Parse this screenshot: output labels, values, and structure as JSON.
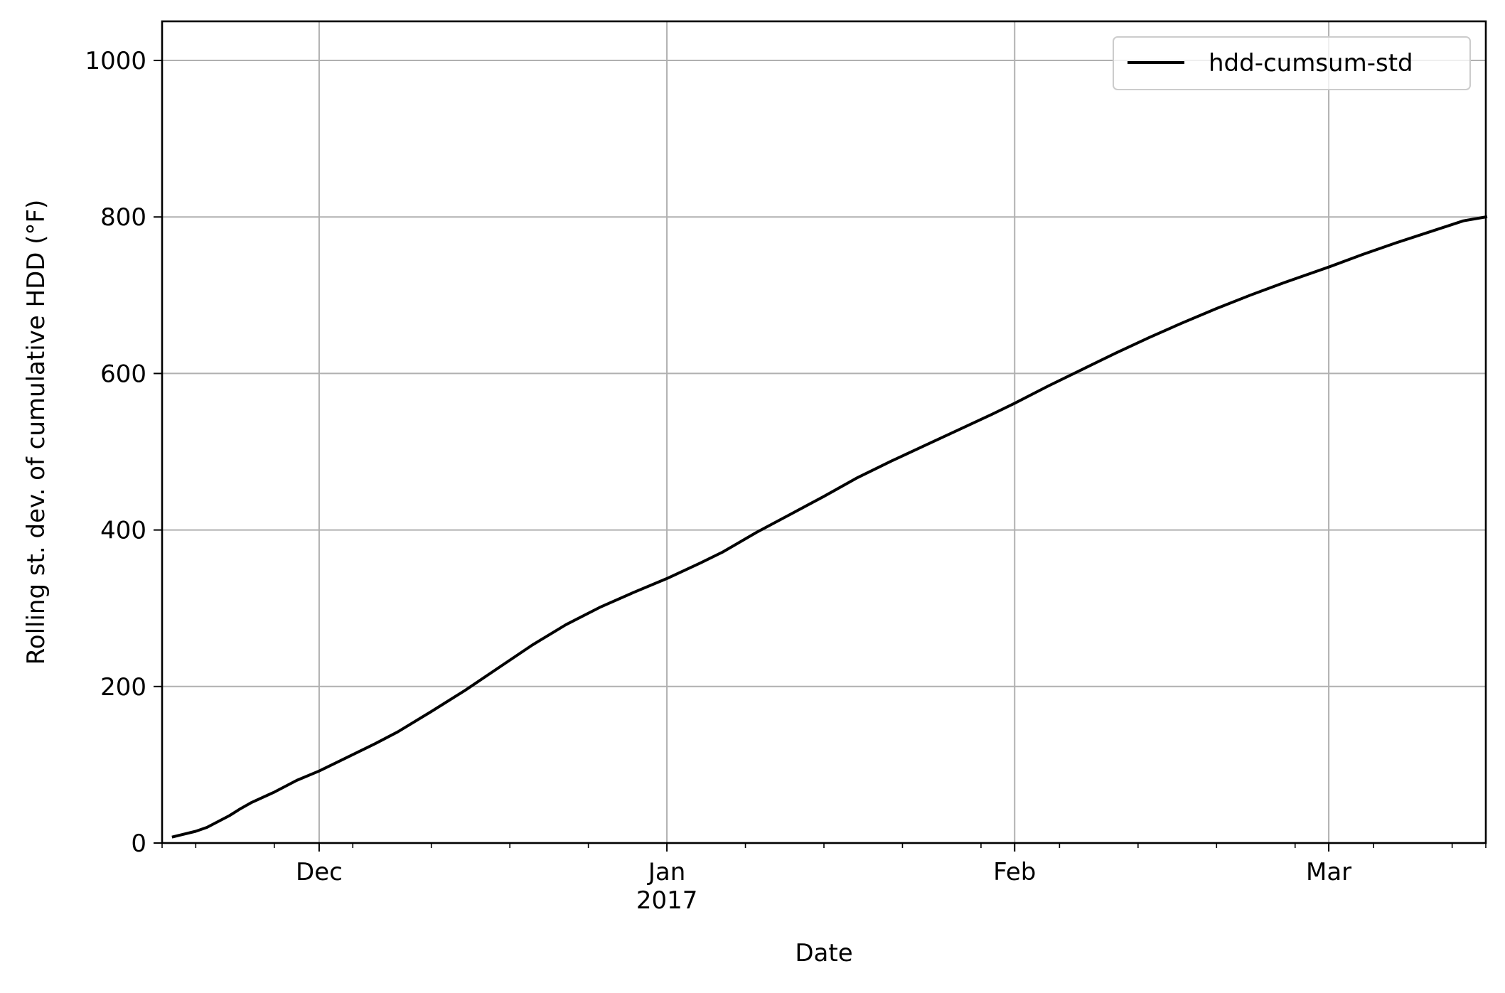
{
  "chart_data": {
    "type": "line",
    "title": "",
    "xlabel": "Date",
    "ylabel": "Rolling st. dev. of cumulative HDD ($^\\circ$F)",
    "ylabel_display": "Rolling st. dev. of cumulative HDD (°F)",
    "xlim": [
      "2016-11-17",
      "2017-03-15"
    ],
    "ylim": [
      0,
      1050
    ],
    "grid": true,
    "legend_position": "top-right",
    "x_ticks": [
      {
        "date": "2016-12-01",
        "label": "Dec",
        "sublabel": ""
      },
      {
        "date": "2017-01-01",
        "label": "Jan",
        "sublabel": "2017"
      },
      {
        "date": "2017-02-01",
        "label": "Feb",
        "sublabel": ""
      },
      {
        "date": "2017-03-01",
        "label": "Mar",
        "sublabel": ""
      }
    ],
    "minor_x_tick_dates": [
      "2016-11-20",
      "2016-11-27",
      "2016-12-04",
      "2016-12-11",
      "2016-12-18",
      "2016-12-25",
      "2017-01-08",
      "2017-01-15",
      "2017-01-22",
      "2017-01-29",
      "2017-02-05",
      "2017-02-12",
      "2017-02-19",
      "2017-02-26",
      "2017-03-05",
      "2017-03-12",
      "2017-03-15"
    ],
    "y_ticks": [
      0,
      200,
      400,
      600,
      800,
      1000
    ],
    "series": [
      {
        "name": "hdd-cumsum-std",
        "color": "#000000",
        "points": [
          [
            "2016-11-18",
            8
          ],
          [
            "2016-11-20",
            15
          ],
          [
            "2016-11-21",
            20
          ],
          [
            "2016-11-23",
            35
          ],
          [
            "2016-11-24",
            44
          ],
          [
            "2016-11-25",
            52
          ],
          [
            "2016-11-27",
            65
          ],
          [
            "2016-11-29",
            80
          ],
          [
            "2016-12-01",
            92
          ],
          [
            "2016-12-03",
            106
          ],
          [
            "2016-12-06",
            127
          ],
          [
            "2016-12-08",
            142
          ],
          [
            "2016-12-11",
            168
          ],
          [
            "2016-12-14",
            195
          ],
          [
            "2016-12-17",
            224
          ],
          [
            "2016-12-20",
            253
          ],
          [
            "2016-12-23",
            279
          ],
          [
            "2016-12-26",
            301
          ],
          [
            "2016-12-29",
            320
          ],
          [
            "2017-01-01",
            338
          ],
          [
            "2017-01-04",
            358
          ],
          [
            "2017-01-06",
            372
          ],
          [
            "2017-01-09",
            397
          ],
          [
            "2017-01-12",
            420
          ],
          [
            "2017-01-15",
            443
          ],
          [
            "2017-01-18",
            467
          ],
          [
            "2017-01-21",
            488
          ],
          [
            "2017-01-24",
            508
          ],
          [
            "2017-01-27",
            528
          ],
          [
            "2017-01-30",
            548
          ],
          [
            "2017-02-01",
            562
          ],
          [
            "2017-02-04",
            584
          ],
          [
            "2017-02-07",
            605
          ],
          [
            "2017-02-10",
            626
          ],
          [
            "2017-02-13",
            646
          ],
          [
            "2017-02-16",
            665
          ],
          [
            "2017-02-19",
            683
          ],
          [
            "2017-02-22",
            700
          ],
          [
            "2017-02-25",
            716
          ],
          [
            "2017-03-01",
            736
          ],
          [
            "2017-03-04",
            752
          ],
          [
            "2017-03-07",
            767
          ],
          [
            "2017-03-10",
            781
          ],
          [
            "2017-03-13",
            795
          ],
          [
            "2017-03-15",
            800
          ]
        ]
      }
    ]
  }
}
